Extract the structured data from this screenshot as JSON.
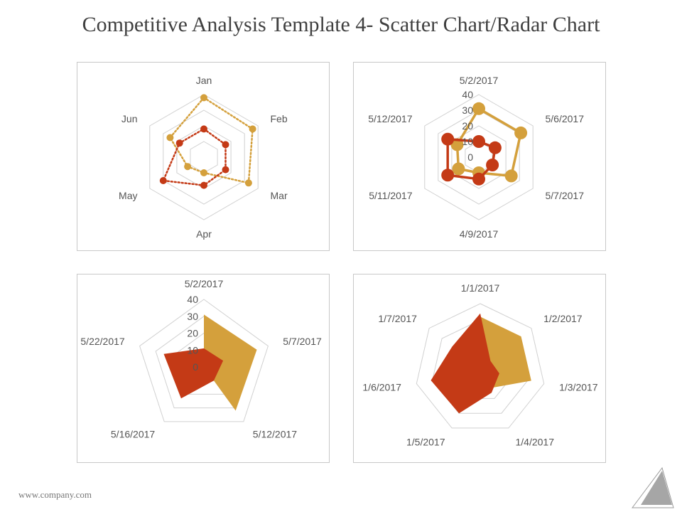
{
  "title": "Competitive Analysis Template 4- Scatter Chart/Radar Chart",
  "footer": "www.company.com",
  "colors": {
    "gold": "#D4A03C",
    "red": "#C43A16",
    "grid": "#D0D0D0",
    "text": "#555555"
  },
  "chart_data": [
    {
      "type": "radar",
      "style": "dotted-line-with-markers",
      "categories": [
        "Jan",
        "Feb",
        "Mar",
        "Apr",
        "May",
        "Jun"
      ],
      "rmax": 40,
      "series": [
        {
          "color": "#D4A03C",
          "values": [
            38,
            36,
            33,
            10,
            12,
            25
          ]
        },
        {
          "color": "#C43A16",
          "values": [
            18,
            16,
            16,
            18,
            30,
            18
          ]
        }
      ]
    },
    {
      "type": "radar",
      "style": "solid-line-with-markers",
      "categories": [
        "5/2/2017",
        "5/6/2017",
        "5/7/2017",
        "4/9/2017",
        "5/11/2017",
        "5/12/2017"
      ],
      "ticks": [
        "0",
        "10",
        "20",
        "30",
        "40"
      ],
      "rmax": 40,
      "series": [
        {
          "color": "#D4A03C",
          "values": [
            31,
            31,
            24,
            10,
            15,
            16
          ]
        },
        {
          "color": "#C43A16",
          "values": [
            10,
            12,
            10,
            14,
            23,
            23
          ]
        }
      ]
    },
    {
      "type": "radar",
      "style": "filled",
      "categories": [
        "5/2/2017",
        "5/7/2017",
        "5/12/2017",
        "5/16/2017",
        "5/22/2017"
      ],
      "ticks": [
        "0",
        "10",
        "20",
        "30",
        "40"
      ],
      "rmax": 40,
      "series": [
        {
          "color": "#D4A03C",
          "values": [
            31,
            33,
            32,
            0,
            0
          ]
        },
        {
          "color": "#C43A16",
          "values": [
            11,
            12,
            10,
            23,
            25
          ]
        }
      ]
    },
    {
      "type": "radar",
      "style": "filled",
      "categories": [
        "1/1/2017",
        "1/2/2017",
        "1/3/2017",
        "1/4/2017",
        "1/5/2017",
        "1/6/2017",
        "1/7/2017"
      ],
      "rmax": 40,
      "series": [
        {
          "color": "#D4A03C",
          "values": [
            32,
            32,
            32,
            13,
            4,
            4,
            6
          ]
        },
        {
          "color": "#C43A16",
          "values": [
            34,
            8,
            12,
            16,
            30,
            31,
            22
          ]
        }
      ]
    }
  ]
}
